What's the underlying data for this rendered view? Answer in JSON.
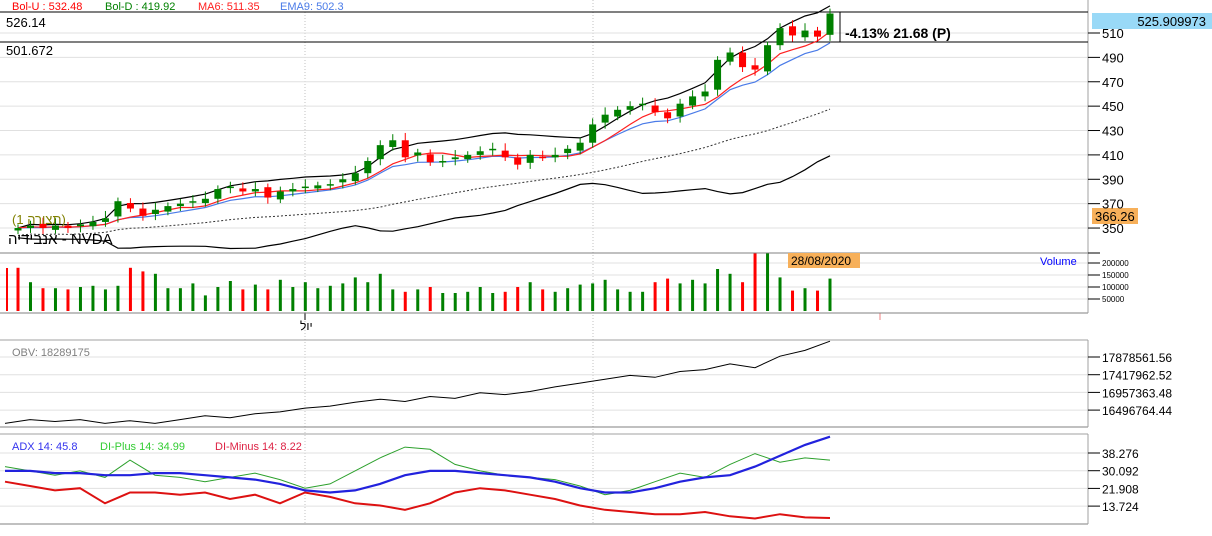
{
  "legend": {
    "bol_u": "Bol-U : 532.48",
    "bol_d": "Bol-D : 419.92",
    "ma6": "MA6: 511.35",
    "ema9": "EMA9: 502.3"
  },
  "levels": {
    "top": "526.14",
    "bottom": "501.672"
  },
  "change_label": "-4.13% 21.68 (P)",
  "symbol_label": "אנבידיה - NVDA",
  "config_label": "(תצורה 1)",
  "price_tags": {
    "last": "525.909973",
    "cursor": "366.26"
  },
  "date_tag": "28/08/2020",
  "volume_label": "Volume",
  "month_label": "יול",
  "colors": {
    "up": "#008000",
    "down": "#ff0000",
    "bol": "#000000",
    "ma6": "#ff2020",
    "ema9": "#4a7be8",
    "adx": "#2222dd",
    "di_plus": "#2ca02c",
    "di_minus": "#dd1111",
    "last_tag": "#99d9f7",
    "cursor_tag": "#f7b05a"
  },
  "chart_data": [
    {
      "type": "candlestick",
      "ylim": [
        330,
        530
      ],
      "y_ticks": [
        "510",
        "490",
        "470",
        "450",
        "430",
        "410",
        "390",
        "370",
        "350"
      ],
      "close": [
        350,
        352,
        350,
        352,
        350,
        353,
        355,
        358,
        372,
        366,
        360,
        365,
        368,
        370,
        372,
        374,
        382,
        384,
        380,
        382,
        375,
        380,
        382,
        384,
        385,
        386,
        390,
        395,
        405,
        418,
        422,
        408,
        412,
        404,
        405,
        408,
        410,
        413,
        415,
        408,
        402,
        410,
        408,
        410,
        415,
        420,
        435,
        443,
        447,
        450,
        452,
        445,
        440,
        452,
        458,
        462,
        488,
        494,
        482,
        480,
        500,
        514,
        508,
        512,
        507,
        526
      ]
    },
    {
      "type": "bar",
      "series": [
        {
          "name": "Volume",
          "values": [
            180000,
            120000,
            95000,
            95000,
            90000,
            100000,
            105000,
            90000,
            105000,
            180000,
            165000,
            155000,
            95000,
            95000,
            115000,
            65000,
            100000,
            125000,
            90000,
            110000,
            90000,
            130000,
            100000,
            120000,
            95000,
            105000,
            115000,
            140000,
            120000,
            155000,
            90000,
            80000,
            90000,
            100000,
            75000,
            75000,
            80000,
            100000,
            75000,
            80000,
            100000,
            120000,
            90000,
            80000,
            95000,
            110000,
            115000,
            130000,
            90000,
            80000,
            80000,
            120000,
            135000,
            115000,
            130000,
            115000,
            175000,
            155000,
            120000,
            240000,
            240000,
            140000,
            85000,
            95000,
            85000,
            135000
          ]
        }
      ],
      "y_ticks": [
        "200000",
        "150000",
        "100000",
        "50000"
      ]
    },
    {
      "type": "line",
      "title": "OBV: 18289175",
      "series": [
        {
          "values": [
            16.15,
            16.25,
            16.2,
            16.25,
            16.15,
            16.22,
            16.15,
            16.25,
            16.35,
            16.3,
            16.4,
            16.45,
            16.55,
            16.6,
            16.7,
            16.78,
            16.72,
            16.85,
            16.8,
            16.95,
            16.9,
            16.98,
            17.1,
            17.2,
            17.3,
            17.4,
            17.35,
            17.5,
            17.55,
            17.7,
            17.6,
            17.9,
            18.05,
            18.29
          ]
        }
      ],
      "y_ticks": [
        "17878561.56",
        "17417962.52",
        "16957363.48",
        "16496764.44"
      ]
    },
    {
      "type": "line",
      "series": [
        {
          "name": "ADX 14: 45.8",
          "values": [
            30,
            30,
            29,
            29,
            28,
            28,
            29,
            29,
            28,
            27,
            26,
            24,
            21,
            20,
            21,
            24,
            28,
            30,
            30,
            29,
            28,
            27,
            25,
            22,
            20,
            20,
            22,
            25,
            27,
            28,
            32,
            37,
            42,
            45.8
          ]
        },
        {
          "name": "DI-Plus 14: 34.99",
          "values": [
            32,
            30,
            28,
            30,
            27,
            35,
            28,
            27,
            25,
            27,
            29,
            26,
            22,
            24,
            30,
            36,
            41,
            40,
            33,
            30,
            28,
            27,
            26,
            23,
            19,
            21,
            25,
            29,
            27,
            33,
            38,
            34,
            36,
            34.99
          ]
        },
        {
          "name": "DI-Minus 14: 8.22",
          "values": [
            25,
            23,
            21,
            22,
            15,
            20,
            20,
            19,
            20,
            17,
            19,
            15,
            20,
            18,
            15,
            14,
            12,
            15,
            20,
            22,
            21,
            19,
            17,
            14,
            12,
            11,
            10,
            10,
            11,
            9,
            8,
            10,
            8.5,
            8.22
          ]
        }
      ],
      "y_ticks": [
        "38.276",
        "30.092",
        "21.908",
        "13.724"
      ]
    }
  ]
}
